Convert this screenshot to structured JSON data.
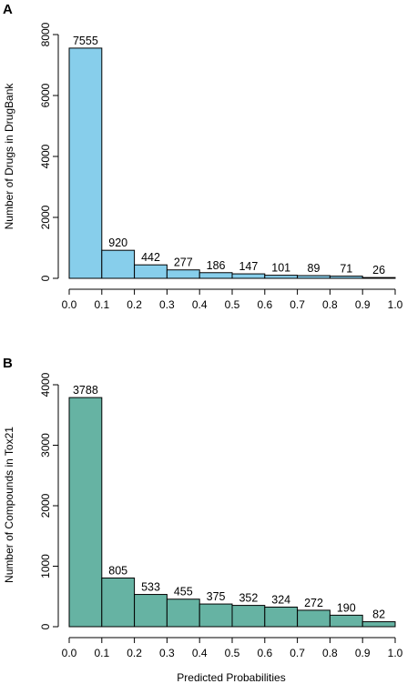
{
  "chart_data": [
    {
      "type": "bar",
      "panel_label": "A",
      "title": "",
      "xlabel": "",
      "ylabel": "Number of Drugs in DrugBank",
      "bin_edges": [
        0.0,
        0.1,
        0.2,
        0.3,
        0.4,
        0.5,
        0.6,
        0.7,
        0.8,
        0.9,
        1.0
      ],
      "x_tick_labels": [
        "0.0",
        "0.1",
        "0.2",
        "0.3",
        "0.4",
        "0.5",
        "0.6",
        "0.7",
        "0.8",
        "0.9",
        "1.0"
      ],
      "values": [
        7555,
        920,
        442,
        277,
        186,
        147,
        101,
        89,
        71,
        26
      ],
      "data_labels": [
        "7555",
        "920",
        "442",
        "277",
        "186",
        "147",
        "101",
        "89",
        "71",
        "26"
      ],
      "y_ticks": [
        0,
        2000,
        4000,
        6000,
        8000
      ],
      "y_tick_labels": [
        "0",
        "2000",
        "4000",
        "6000",
        "8000"
      ],
      "xlim": [
        0.0,
        1.0
      ],
      "ylim": [
        0,
        8000
      ],
      "bar_color": "#87ceeb",
      "grid": false,
      "legend": "none"
    },
    {
      "type": "bar",
      "panel_label": "B",
      "title": "",
      "xlabel": "Predicted Probabilities",
      "ylabel": "Number of Compounds in Tox21",
      "bin_edges": [
        0.0,
        0.1,
        0.2,
        0.3,
        0.4,
        0.5,
        0.6,
        0.7,
        0.8,
        0.9,
        1.0
      ],
      "x_tick_labels": [
        "0.0",
        "0.1",
        "0.2",
        "0.3",
        "0.4",
        "0.5",
        "0.6",
        "0.7",
        "0.8",
        "0.9",
        "1.0"
      ],
      "values": [
        3788,
        805,
        533,
        455,
        375,
        352,
        324,
        272,
        190,
        82
      ],
      "data_labels": [
        "3788",
        "805",
        "533",
        "455",
        "375",
        "352",
        "324",
        "272",
        "190",
        "82"
      ],
      "y_ticks": [
        0,
        1000,
        2000,
        3000,
        4000
      ],
      "y_tick_labels": [
        "0",
        "1000",
        "2000",
        "3000",
        "4000"
      ],
      "xlim": [
        0.0,
        1.0
      ],
      "ylim": [
        0,
        4000
      ],
      "bar_color": "#66b3a3",
      "grid": false,
      "legend": "none"
    }
  ]
}
